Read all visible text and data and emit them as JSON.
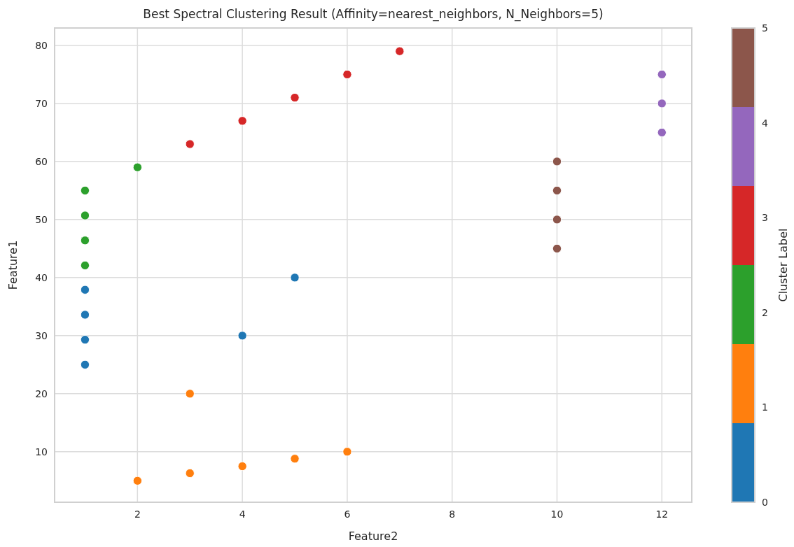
{
  "chart_data": {
    "type": "scatter",
    "title": "Best Spectral Clustering Result (Affinity=nearest_neighbors, N_Neighbors=5)",
    "xlabel": "Feature2",
    "ylabel": "Feature1",
    "clabel": "Cluster Label",
    "xlim": [
      0.42,
      12.57
    ],
    "xticks": [
      2,
      4,
      6,
      8,
      10,
      12
    ],
    "ylim": [
      1.3,
      83
    ],
    "yticks": [
      10,
      20,
      30,
      40,
      50,
      60,
      70,
      80
    ],
    "clim": [
      0,
      5
    ],
    "cticks": [
      0,
      1,
      2,
      3,
      4,
      5
    ],
    "grid": true,
    "marker": "circle",
    "series": [
      {
        "color": "#1f77b4",
        "x": [
          1,
          1,
          1,
          1,
          4,
          5
        ],
        "values": [
          25,
          29.3,
          33.6,
          37.9,
          30,
          40
        ]
      },
      {
        "color": "#ff7f0e",
        "x": [
          2,
          3,
          4,
          5,
          6,
          3
        ],
        "values": [
          5,
          6.3,
          7.5,
          8.8,
          10,
          20
        ]
      },
      {
        "color": "#2ca02c",
        "x": [
          1,
          1,
          1,
          1,
          2
        ],
        "values": [
          42.1,
          46.4,
          50.7,
          55,
          59
        ]
      },
      {
        "color": "#d62728",
        "x": [
          3,
          4,
          5,
          6,
          7
        ],
        "values": [
          63,
          67,
          71,
          75,
          79
        ]
      },
      {
        "color": "#9467bd",
        "x": [
          12,
          12,
          12
        ],
        "values": [
          65,
          70,
          75
        ]
      },
      {
        "color": "#8c564b",
        "x": [
          10,
          10,
          10,
          10
        ],
        "values": [
          45,
          50,
          55,
          60
        ]
      }
    ]
  }
}
